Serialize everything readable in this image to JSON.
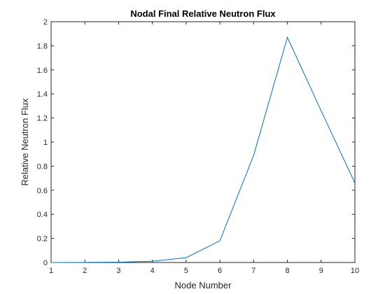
{
  "chart_data": {
    "type": "line",
    "title": "Nodal Final Relative Neutron Flux",
    "xlabel": "Node Number",
    "ylabel": "Relative Neutron Flux",
    "xlim": [
      1,
      10
    ],
    "ylim": [
      0,
      2
    ],
    "xticks": [
      "1",
      "2",
      "3",
      "4",
      "5",
      "6",
      "7",
      "8",
      "9",
      "10"
    ],
    "yticks": [
      "0",
      "0.2",
      "0.4",
      "0.6",
      "0.8",
      "1",
      "1.2",
      "1.4",
      "1.6",
      "1.8",
      "2"
    ],
    "grid": false,
    "series": [
      {
        "x": [
          1,
          2,
          3,
          4,
          5,
          6,
          7,
          8,
          9,
          10
        ],
        "y": [
          0.0,
          0.001,
          0.003,
          0.01,
          0.04,
          0.18,
          0.89,
          1.87,
          1.26,
          0.66
        ],
        "color": "#0072BD"
      }
    ]
  }
}
